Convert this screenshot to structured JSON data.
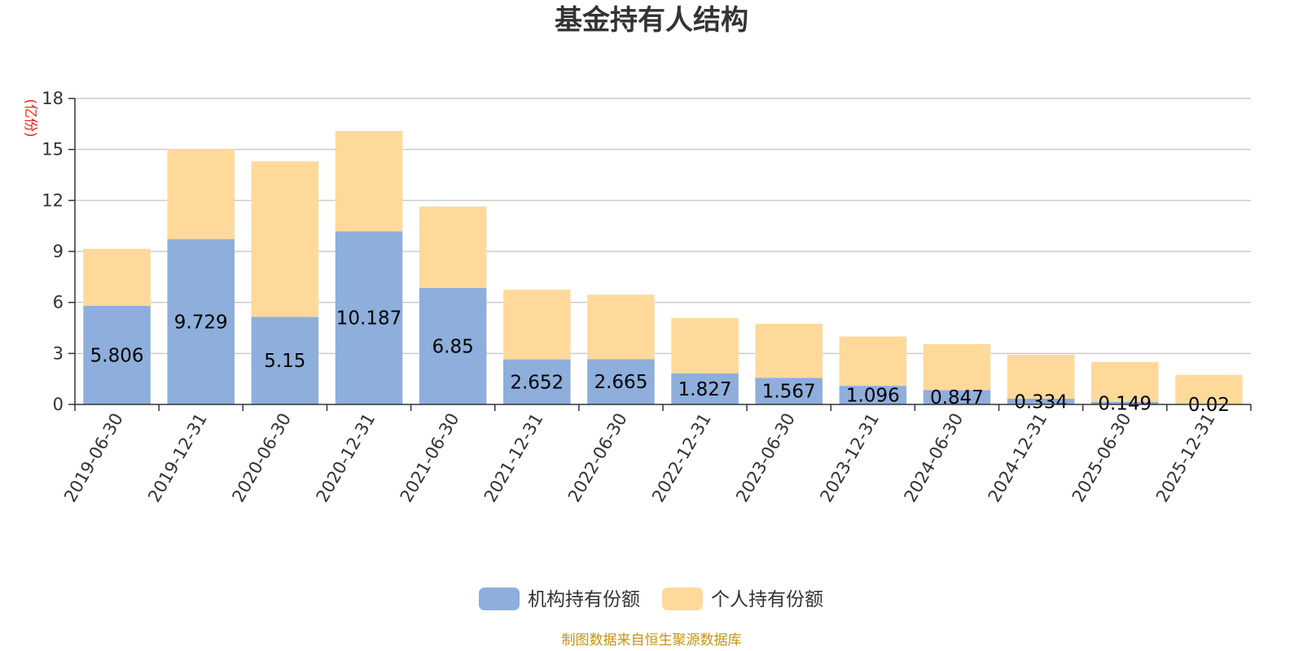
{
  "title": "基金持有人结构",
  "source_note": "制图数据来自恒生聚源数据库",
  "chart_data": {
    "type": "bar",
    "stacked": true,
    "title": "基金持有人结构",
    "ylabel": "(亿份)",
    "ylim": [
      0,
      18
    ],
    "yticks": [
      0,
      3,
      6,
      9,
      12,
      15,
      18
    ],
    "grid": true,
    "legend_position": "bottom",
    "categories": [
      "2019-06-30",
      "2019-12-31",
      "2020-06-30",
      "2020-12-31",
      "2021-06-30",
      "2021-12-31",
      "2022-06-30",
      "2022-12-31",
      "2023-06-30",
      "2023-12-31",
      "2024-06-30",
      "2024-12-31",
      "2025-06-30",
      "2025-12-31"
    ],
    "series": [
      {
        "name": "机构持有份额",
        "color": "#8eaedb",
        "values": [
          5.806,
          9.729,
          5.15,
          10.187,
          6.85,
          2.652,
          2.665,
          1.827,
          1.567,
          1.096,
          0.847,
          0.334,
          0.149,
          0.02
        ],
        "labels": [
          "5.806",
          "9.729",
          "5.15",
          "10.187",
          "6.85",
          "2.652",
          "2.665",
          "1.827",
          "1.567",
          "1.096",
          "0.847",
          "0.334",
          "0.149",
          "0.02"
        ]
      },
      {
        "name": "个人持有份额",
        "color": "#ffd99a",
        "values": [
          3.35,
          5.3,
          9.15,
          5.9,
          4.79,
          4.09,
          3.79,
          3.26,
          3.18,
          2.9,
          2.7,
          2.59,
          2.35,
          1.72
        ]
      }
    ]
  }
}
